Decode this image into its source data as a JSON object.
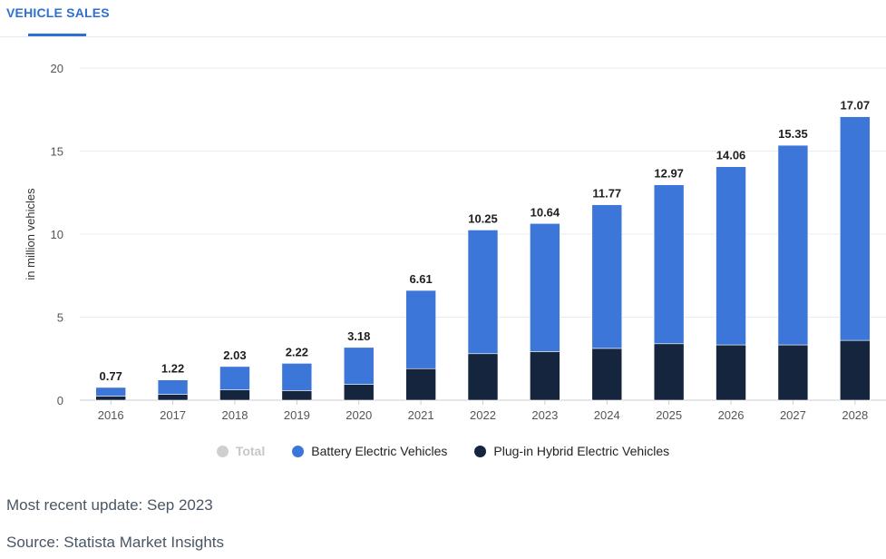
{
  "tab": {
    "label": "VEHICLE SALES"
  },
  "footer": {
    "update": "Most recent update: Sep 2023",
    "source": "Source: Statista Market Insights"
  },
  "colors": {
    "bev": "#3c76d8",
    "phev": "#14253d",
    "total": "#cfcfcf",
    "accent": "#2e6fd4"
  },
  "legend": {
    "total": "Total",
    "bev": "Battery Electric Vehicles",
    "phev": "Plug-in Hybrid Electric Vehicles"
  },
  "chart_data": {
    "type": "bar",
    "stacked": true,
    "title": "",
    "xlabel": "",
    "ylabel": "in million vehicles",
    "ylim": [
      0,
      20
    ],
    "yticks": [
      0,
      5,
      10,
      15,
      20
    ],
    "grid": true,
    "legend_position": "bottom",
    "categories": [
      "2016",
      "2017",
      "2018",
      "2019",
      "2020",
      "2021",
      "2022",
      "2023",
      "2024",
      "2025",
      "2026",
      "2027",
      "2028"
    ],
    "series": [
      {
        "name": "Plug-in Hybrid Electric Vehicles",
        "values": [
          0.25,
          0.35,
          0.62,
          0.58,
          0.95,
          1.9,
          2.8,
          2.93,
          3.12,
          3.4,
          3.33,
          3.33,
          3.6
        ]
      },
      {
        "name": "Battery Electric Vehicles",
        "values": [
          0.52,
          0.87,
          1.41,
          1.64,
          2.23,
          4.71,
          7.45,
          7.71,
          8.65,
          9.57,
          10.73,
          12.02,
          13.47
        ]
      }
    ],
    "totals": [
      0.77,
      1.22,
      2.03,
      2.22,
      3.18,
      6.61,
      10.25,
      10.64,
      11.77,
      12.97,
      14.06,
      15.35,
      17.07
    ],
    "total_labels": [
      "0.77",
      "1.22",
      "2.03",
      "2.22",
      "3.18",
      "6.61",
      "10.25",
      "10.64",
      "11.77",
      "12.97",
      "14.06",
      "15.35",
      "17.07"
    ]
  }
}
